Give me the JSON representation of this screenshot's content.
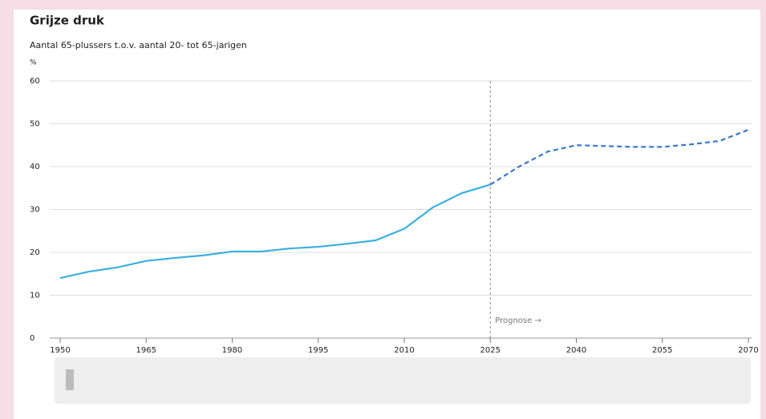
{
  "chart_data": {
    "type": "line",
    "title": "Grijze druk",
    "subtitle": "Aantal 65-plussers t.o.v. aantal 20- tot 65-jarigen",
    "y_label": "%",
    "x": [
      1950,
      1955,
      1960,
      1965,
      1970,
      1975,
      1980,
      1985,
      1990,
      1995,
      2000,
      2005,
      2010,
      2015,
      2020,
      2025,
      2030,
      2035,
      2040,
      2045,
      2050,
      2055,
      2060,
      2065,
      2070
    ],
    "series": [
      {
        "color": "#3ab0de",
        "style": "solid",
        "values": [
          14.0,
          15.5,
          16.5,
          18.0,
          18.7,
          19.3,
          20.2,
          20.2,
          20.9,
          21.3,
          22.0,
          22.8,
          25.5,
          30.5,
          33.8,
          35.8,
          null,
          null,
          null,
          null,
          null,
          null,
          null,
          null,
          null
        ]
      },
      {
        "color": "#3a78c8",
        "style": "dashed",
        "values": [
          null,
          null,
          null,
          null,
          null,
          null,
          null,
          null,
          null,
          null,
          null,
          null,
          null,
          null,
          null,
          35.8,
          40.0,
          43.5,
          45.0,
          44.8,
          44.6,
          44.6,
          45.2,
          46.0,
          48.6
        ]
      }
    ],
    "annotation": {
      "text": "Prognose →",
      "x": 2025
    },
    "xlim": [
      1950,
      2070
    ],
    "xticks": [
      1950,
      1965,
      1980,
      1995,
      2010,
      2025,
      2040,
      2055,
      2070
    ],
    "ylim": [
      0,
      60
    ],
    "yticks": [
      0,
      10,
      20,
      30,
      40,
      50,
      60
    ],
    "grid": true
  }
}
